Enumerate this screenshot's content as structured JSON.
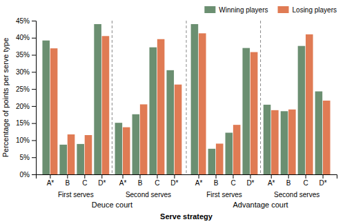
{
  "chart_data": {
    "type": "bar",
    "xlabel": "Serve strategy",
    "ylabel": "Percentage of points per serve type",
    "categories": [
      [
        "Deuce court",
        "First serves",
        "A*"
      ],
      [
        "Deuce court",
        "First serves",
        "B"
      ],
      [
        "Deuce court",
        "First serves",
        "C"
      ],
      [
        "Deuce court",
        "First serves",
        "D*"
      ],
      [
        "Deuce court",
        "Second serves",
        "A*"
      ],
      [
        "Deuce court",
        "Second serves",
        "B"
      ],
      [
        "Deuce court",
        "Second serves",
        "C"
      ],
      [
        "Deuce court",
        "Second serves",
        "D*"
      ],
      [
        "Advantage court",
        "First serves",
        "A*"
      ],
      [
        "Advantage court",
        "First serves",
        "B"
      ],
      [
        "Advantage court",
        "First serves",
        "C"
      ],
      [
        "Advantage court",
        "First serves",
        "D*"
      ],
      [
        "Advantage court",
        "Second serves",
        "A*"
      ],
      [
        "Advantage court",
        "Second serves",
        "B"
      ],
      [
        "Advantage court",
        "Second serves",
        "C"
      ],
      [
        "Advantage court",
        "Second serves",
        "D*"
      ]
    ],
    "series": [
      {
        "name": "Winning players",
        "color": "#6b8f71",
        "values": [
          0.392,
          0.087,
          0.089,
          0.44,
          0.151,
          0.176,
          0.372,
          0.305,
          0.44,
          0.075,
          0.122,
          0.37,
          0.204,
          0.185,
          0.376,
          0.243
        ]
      },
      {
        "name": "Losing players",
        "color": "#e07b54",
        "values": [
          0.369,
          0.117,
          0.115,
          0.405,
          0.138,
          0.205,
          0.396,
          0.263,
          0.413,
          0.09,
          0.145,
          0.358,
          0.188,
          0.19,
          0.41,
          0.216
        ]
      }
    ],
    "ylim": [
      0,
      0.45
    ],
    "yticks": [
      {
        "value": 0.0,
        "label": "0%"
      },
      {
        "value": 0.05,
        "label": "5%"
      },
      {
        "value": 0.1,
        "label": "10%"
      },
      {
        "value": 0.15,
        "label": "15%"
      },
      {
        "value": 0.2,
        "label": "20%"
      },
      {
        "value": 0.25,
        "label": "25%"
      },
      {
        "value": 0.3,
        "label": "30%"
      },
      {
        "value": 0.35,
        "label": "35%"
      },
      {
        "value": 0.4,
        "label": "40%"
      },
      {
        "value": 0.45,
        "label": "45%"
      }
    ],
    "grid": false,
    "legend": "upper right"
  }
}
